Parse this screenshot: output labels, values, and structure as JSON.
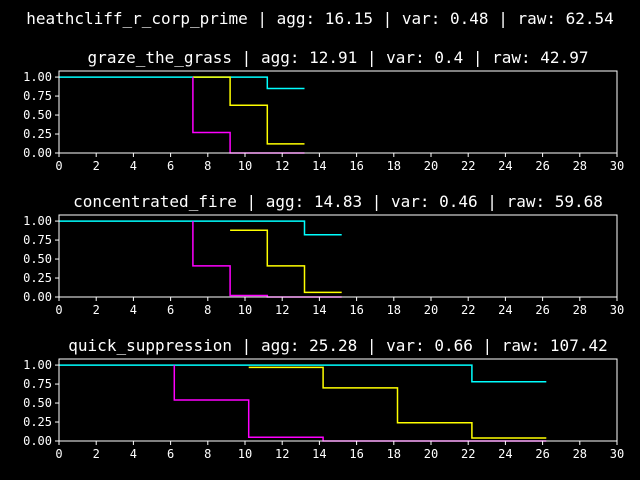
{
  "figure": {
    "suptitle": "heathcliff_r_corp_prime | agg: 16.15 | var: 0.48 | raw: 62.54",
    "background": "#000000",
    "foreground": "#ffffff"
  },
  "chart_data": [
    {
      "type": "line",
      "step": true,
      "title": "graze_the_grass | agg: 12.91 | var: 0.4 | raw: 42.97",
      "xlabel": "",
      "ylabel": "",
      "xlim": [
        0,
        30
      ],
      "ylim": [
        0,
        1.08
      ],
      "xticks": [
        0,
        2,
        4,
        6,
        8,
        10,
        12,
        14,
        16,
        18,
        20,
        22,
        24,
        26,
        28,
        30
      ],
      "yticks": [
        0.0,
        0.25,
        0.5,
        0.75,
        1.0
      ],
      "xtick_labels": [
        "0",
        "2",
        "4",
        "6",
        "8",
        "10",
        "12",
        "14",
        "16",
        "18",
        "20",
        "22",
        "24",
        "26",
        "28",
        "30"
      ],
      "ytick_labels": [
        "0.00",
        "0.25",
        "0.50",
        "0.75",
        "1.00"
      ],
      "grid": false,
      "series": [
        {
          "color": "#00ffff",
          "x": [
            0,
            11.2,
            11.2,
            13.2
          ],
          "y": [
            1.0,
            1.0,
            0.85,
            0.85
          ]
        },
        {
          "color": "#ffff00",
          "x": [
            7.2,
            9.2,
            9.2,
            11.2,
            11.2,
            13.2
          ],
          "y": [
            1.0,
            1.0,
            0.63,
            0.63,
            0.12,
            0.12
          ]
        },
        {
          "color": "#ff00ff",
          "x": [
            7.2,
            7.2,
            9.2,
            9.2,
            13.2
          ],
          "y": [
            1.0,
            0.27,
            0.27,
            0.0,
            0.0
          ]
        }
      ]
    },
    {
      "type": "line",
      "step": true,
      "title": "concentrated_fire | agg: 14.83 | var: 0.46 | raw: 59.68",
      "xlabel": "",
      "ylabel": "",
      "xlim": [
        0,
        30
      ],
      "ylim": [
        0,
        1.08
      ],
      "xticks": [
        0,
        2,
        4,
        6,
        8,
        10,
        12,
        14,
        16,
        18,
        20,
        22,
        24,
        26,
        28,
        30
      ],
      "yticks": [
        0.0,
        0.25,
        0.5,
        0.75,
        1.0
      ],
      "xtick_labels": [
        "0",
        "2",
        "4",
        "6",
        "8",
        "10",
        "12",
        "14",
        "16",
        "18",
        "20",
        "22",
        "24",
        "26",
        "28",
        "30"
      ],
      "ytick_labels": [
        "0.00",
        "0.25",
        "0.50",
        "0.75",
        "1.00"
      ],
      "grid": false,
      "series": [
        {
          "color": "#00ffff",
          "x": [
            0,
            13.2,
            13.2,
            15.2
          ],
          "y": [
            1.0,
            1.0,
            0.82,
            0.82
          ]
        },
        {
          "color": "#ffff00",
          "x": [
            9.2,
            11.2,
            11.2,
            13.2,
            13.2,
            15.2
          ],
          "y": [
            0.88,
            0.88,
            0.41,
            0.41,
            0.06,
            0.06
          ]
        },
        {
          "color": "#ff00ff",
          "x": [
            7.2,
            7.2,
            9.2,
            9.2,
            11.2,
            11.2,
            15.2
          ],
          "y": [
            1.0,
            0.41,
            0.41,
            0.02,
            0.02,
            0.0,
            0.0
          ]
        }
      ]
    },
    {
      "type": "line",
      "step": true,
      "title": "quick_suppression | agg: 25.28 | var: 0.66 | raw: 107.42",
      "xlabel": "",
      "ylabel": "",
      "xlim": [
        0,
        30
      ],
      "ylim": [
        0,
        1.08
      ],
      "xticks": [
        0,
        2,
        4,
        6,
        8,
        10,
        12,
        14,
        16,
        18,
        20,
        22,
        24,
        26,
        28,
        30
      ],
      "yticks": [
        0.0,
        0.25,
        0.5,
        0.75,
        1.0
      ],
      "xtick_labels": [
        "0",
        "2",
        "4",
        "6",
        "8",
        "10",
        "12",
        "14",
        "16",
        "18",
        "20",
        "22",
        "24",
        "26",
        "28",
        "30"
      ],
      "ytick_labels": [
        "0.00",
        "0.25",
        "0.50",
        "0.75",
        "1.00"
      ],
      "grid": false,
      "series": [
        {
          "color": "#00ffff",
          "x": [
            0,
            22.2,
            22.2,
            26.2
          ],
          "y": [
            1.0,
            1.0,
            0.78,
            0.78
          ]
        },
        {
          "color": "#ffff00",
          "x": [
            10.2,
            14.2,
            14.2,
            18.2,
            18.2,
            22.2,
            22.2,
            26.2
          ],
          "y": [
            0.97,
            0.97,
            0.7,
            0.7,
            0.24,
            0.24,
            0.04,
            0.04
          ]
        },
        {
          "color": "#ff00ff",
          "x": [
            6.2,
            6.2,
            10.2,
            10.2,
            14.2,
            14.2,
            26.2
          ],
          "y": [
            1.0,
            0.54,
            0.54,
            0.05,
            0.05,
            0.0,
            0.0
          ]
        }
      ]
    }
  ]
}
